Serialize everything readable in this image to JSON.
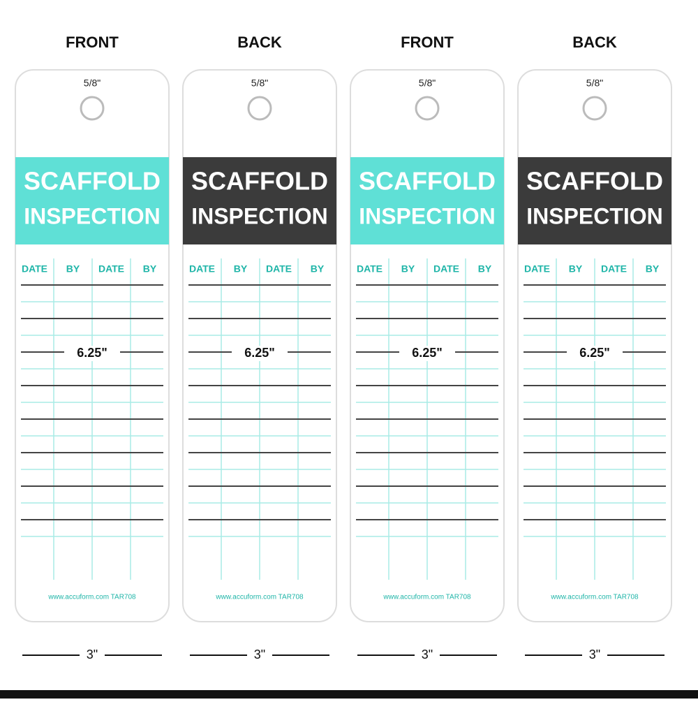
{
  "views": {
    "front": "FRONT",
    "back": "BACK"
  },
  "tag": {
    "title_line1": "SCAFFOLD",
    "title_line2": "INSPECTION",
    "columns": [
      "DATE",
      "BY",
      "DATE",
      "BY"
    ],
    "footer": "www.accuform.com  TAR708"
  },
  "dimensions": {
    "width": "3\"",
    "height": "6.25\"",
    "hole": "5/8\""
  }
}
